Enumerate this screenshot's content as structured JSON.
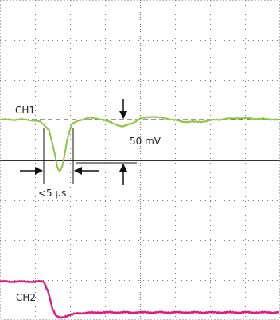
{
  "chart_data": {
    "type": "line",
    "title": "",
    "xlabel": "",
    "ylabel": "",
    "grid": true,
    "grid_divisions": {
      "x": 8,
      "y": 8
    },
    "series": [
      {
        "name": "CH1",
        "color": "#8cc63f",
        "points": [
          [
            0,
            0
          ],
          [
            0.8,
            0
          ],
          [
            1.15,
            0.05
          ],
          [
            1.4,
            0.25
          ],
          [
            1.55,
            0.8
          ],
          [
            1.65,
            1.25
          ],
          [
            1.72,
            1.3
          ],
          [
            1.8,
            1.1
          ],
          [
            1.92,
            0.5
          ],
          [
            2.05,
            0.12
          ],
          [
            2.25,
            0.02
          ],
          [
            2.55,
            -0.05
          ],
          [
            2.85,
            -0.02
          ],
          [
            3.2,
            0.08
          ],
          [
            3.5,
            0.18
          ],
          [
            3.75,
            0.1
          ],
          [
            4.0,
            -0.02
          ],
          [
            4.3,
            -0.08
          ],
          [
            4.7,
            -0.04
          ],
          [
            5.2,
            0.05
          ],
          [
            5.7,
            0.06
          ],
          [
            6.2,
            0.0
          ],
          [
            6.8,
            -0.04
          ],
          [
            7.4,
            -0.02
          ],
          [
            8.0,
            0
          ]
        ]
      },
      {
        "name": "CH2",
        "color": "#e0197d",
        "points": [
          [
            0,
            0
          ],
          [
            1.25,
            0
          ],
          [
            1.38,
            0.35
          ],
          [
            1.5,
            0.95
          ],
          [
            1.6,
            1.2
          ],
          [
            1.72,
            1.25
          ],
          [
            1.85,
            1.21
          ],
          [
            2.2,
            1.1
          ],
          [
            2.8,
            1.07
          ],
          [
            4.0,
            1.07
          ],
          [
            6.0,
            1.07
          ],
          [
            8.0,
            1.07
          ]
        ]
      }
    ],
    "annotations": {
      "ch1_label": "CH1",
      "ch2_label": "CH2",
      "amplitude_label": "50 mV",
      "time_label": "<5 µs"
    }
  }
}
